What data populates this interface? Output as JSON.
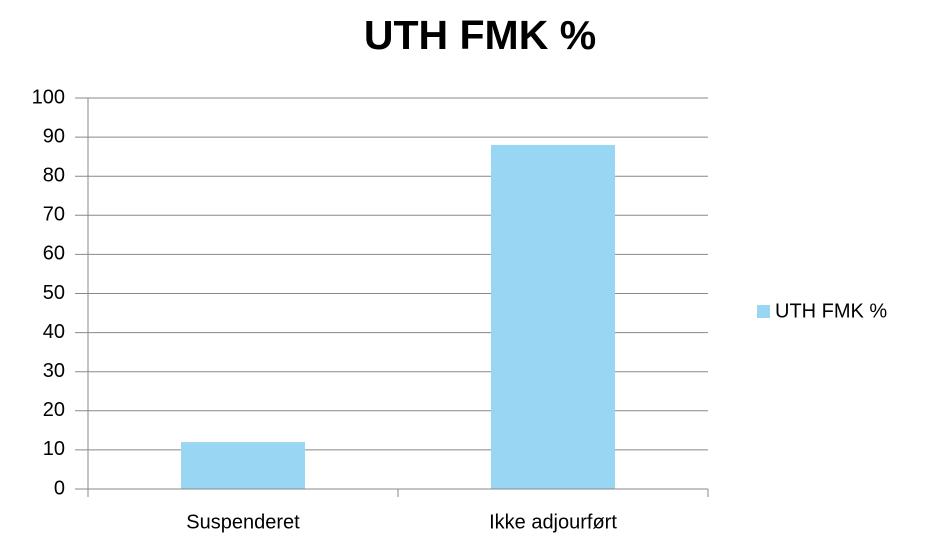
{
  "chart_data": {
    "type": "bar",
    "title": "UTH FMK %",
    "categories": [
      "Suspenderet",
      "Ikke adjourført"
    ],
    "series": [
      {
        "name": "UTH FMK %",
        "color": "#99d6f4",
        "values": [
          12,
          88
        ]
      }
    ],
    "ylim": [
      0,
      100
    ],
    "yticks": [
      0,
      10,
      20,
      30,
      40,
      50,
      60,
      70,
      80,
      90,
      100
    ],
    "grid": true,
    "legend": "right"
  }
}
